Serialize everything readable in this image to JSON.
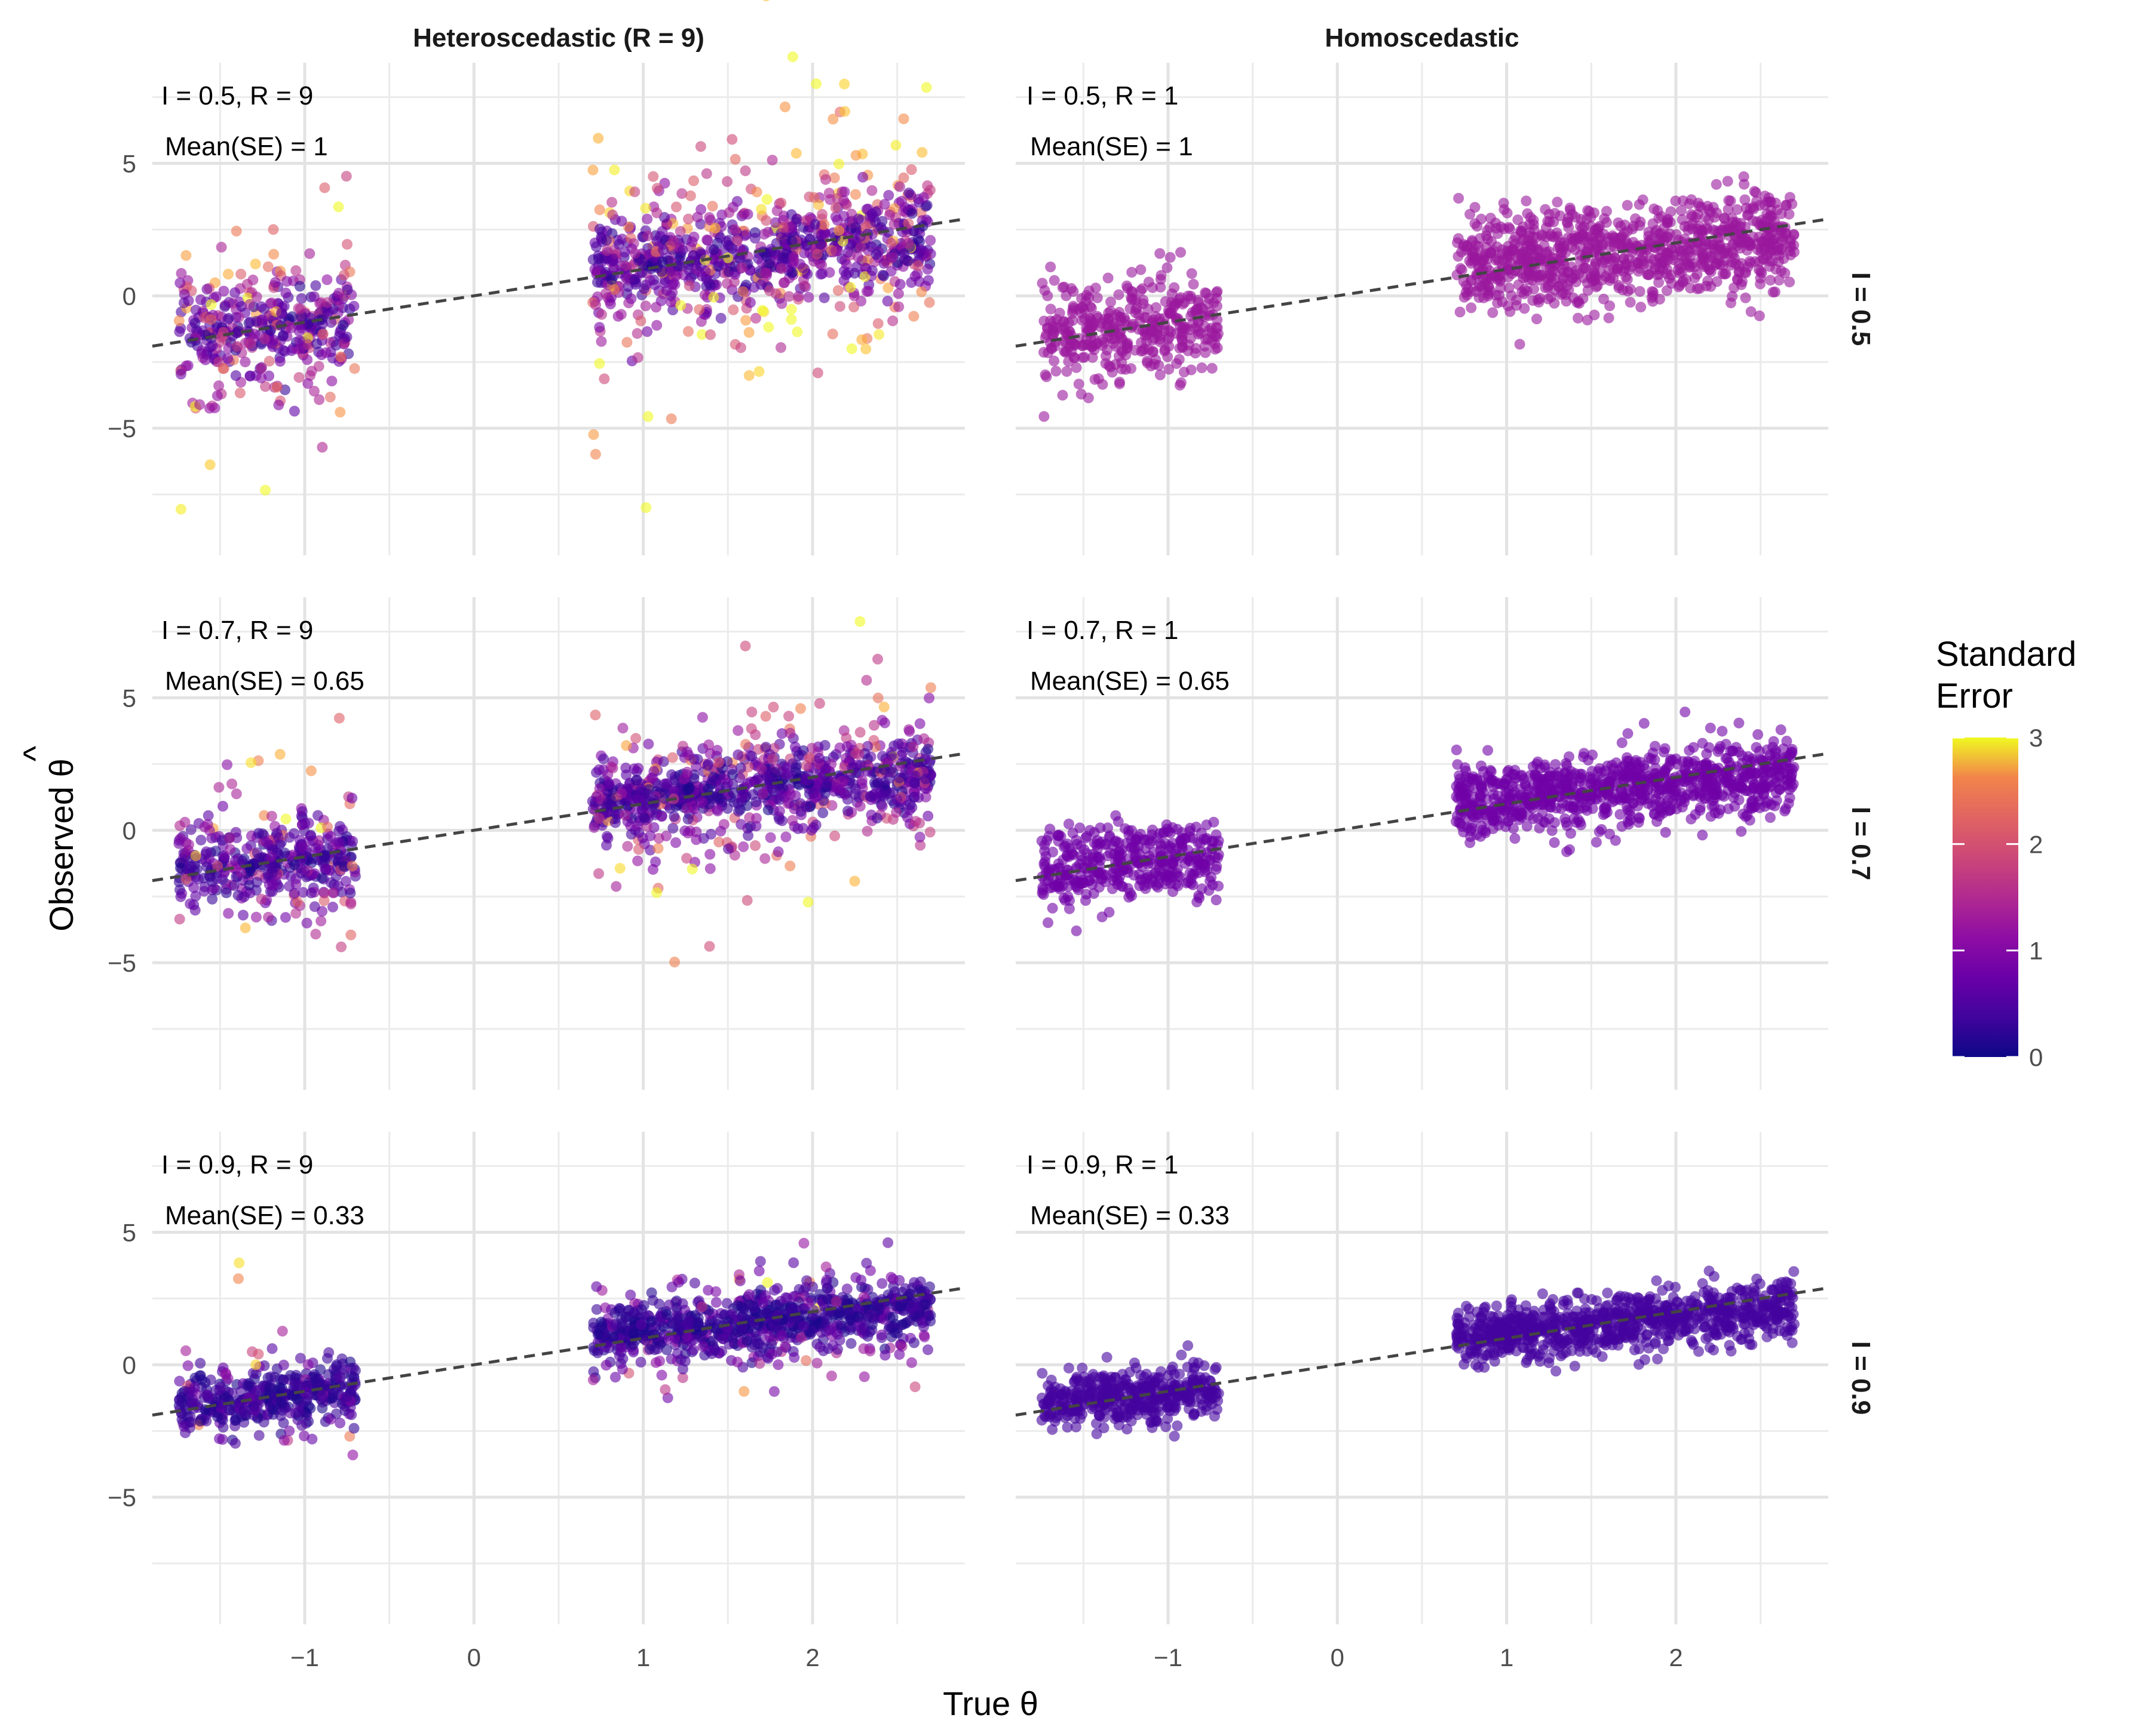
{
  "chart_data": {
    "type": "scatter",
    "layout": "faceted grid, 3 rows x 2 columns",
    "xlabel": "True θ",
    "ylabel": "Observed θ",
    "ylabel_hat": "^",
    "xlim": [
      -1.9,
      2.9
    ],
    "ylim": [
      -9.8,
      8.8
    ],
    "x_ticks": [
      -1,
      0,
      1,
      2
    ],
    "x_tick_labels": [
      "−1",
      "0",
      "1",
      "2"
    ],
    "y_ticks": [
      5,
      0,
      -5
    ],
    "y_tick_labels": [
      "5",
      "0",
      "−5"
    ],
    "x_tick_labels_by_column": [
      [
        "−1",
        "0",
        "1",
        "2"
      ],
      [
        "−1",
        "0",
        "1",
        "2"
      ]
    ],
    "reference_line": {
      "style": "dashed",
      "slope": 1,
      "intercept": 0
    },
    "columns": [
      "Heteroscedastic (R = 9)",
      "Homoscedastic"
    ],
    "rows": [
      "I = 0.5",
      "I = 0.7",
      "I = 0.9"
    ],
    "legend": {
      "title_line1": "Standard",
      "title_line2": "Error",
      "colormap": "plasma",
      "range": [
        0,
        3
      ],
      "ticks": [
        3,
        2,
        1,
        0
      ],
      "tick_labels": [
        "3",
        "2",
        "1",
        "0"
      ],
      "position": "right"
    },
    "panels": [
      {
        "row": 0,
        "col": 0,
        "label1": "I = 0.5, R = 9",
        "label2": "Mean(SE) = 1",
        "mean_se": 1.0,
        "heteroscedastic": true,
        "n_points": 1300
      },
      {
        "row": 0,
        "col": 1,
        "label1": "I = 0.5, R = 1",
        "label2": "Mean(SE) = 1",
        "mean_se": 1.0,
        "heteroscedastic": false,
        "n_points": 1300
      },
      {
        "row": 1,
        "col": 0,
        "label1": "I = 0.7, R = 9",
        "label2": "Mean(SE) = 0.65",
        "mean_se": 0.65,
        "heteroscedastic": true,
        "n_points": 1300
      },
      {
        "row": 1,
        "col": 1,
        "label1": "I = 0.7, R = 1",
        "label2": "Mean(SE) = 0.65",
        "mean_se": 0.65,
        "heteroscedastic": false,
        "n_points": 1300
      },
      {
        "row": 2,
        "col": 0,
        "label1": "I = 0.9, R = 9",
        "label2": "Mean(SE) = 0.33",
        "mean_se": 0.33,
        "heteroscedastic": true,
        "n_points": 1300
      },
      {
        "row": 2,
        "col": 1,
        "label1": "I = 0.9, R = 1",
        "label2": "Mean(SE) = 0.33",
        "mean_se": 0.33,
        "heteroscedastic": false,
        "n_points": 1300
      }
    ],
    "true_theta_clusters": [
      {
        "x_range": [
          -1.75,
          -0.7
        ],
        "center_y": -1.2,
        "share": 0.3
      },
      {
        "x_range": [
          0.7,
          2.7
        ],
        "center_y": 1.6,
        "share": 0.7
      }
    ]
  }
}
